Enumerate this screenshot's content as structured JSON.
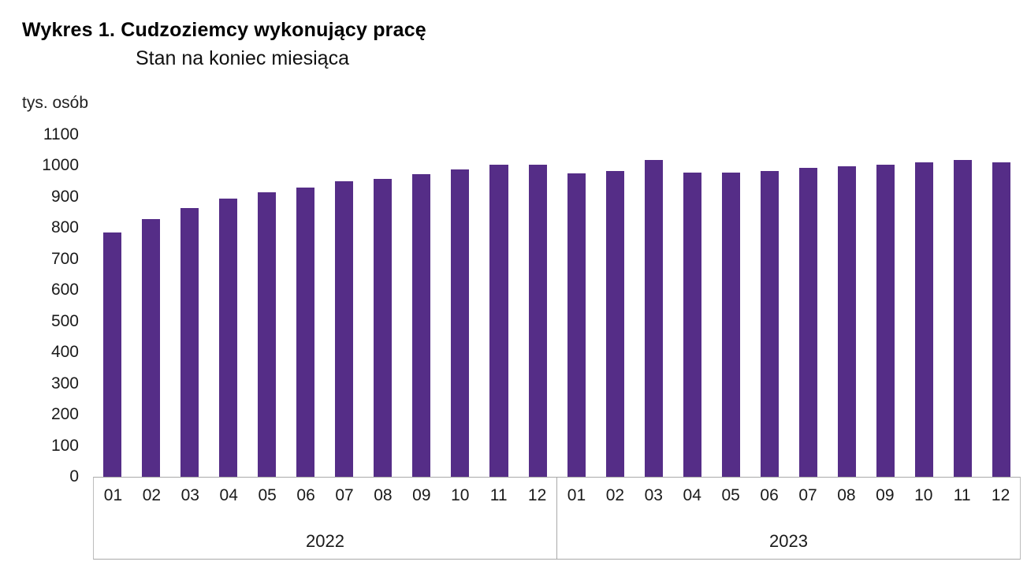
{
  "title": "Wykres 1. Cudzoziemcy wykonujący pracę",
  "subtitle": "Stan na koniec miesiąca",
  "unit_label": "tys. osób",
  "accent_color": "#552d87",
  "chart_data": {
    "type": "bar",
    "title": "Wykres 1. Cudzoziemcy wykonujący pracę",
    "subtitle": "Stan na koniec miesiąca",
    "ylabel": "tys. osób",
    "xlabel": "",
    "ylim": [
      0,
      1100
    ],
    "yticks": [
      0,
      100,
      200,
      300,
      400,
      500,
      600,
      700,
      800,
      900,
      1000,
      1100
    ],
    "grid": false,
    "legend": "none",
    "bar_color": "#552d87",
    "groups": [
      {
        "year": "2022",
        "categories": [
          "01",
          "02",
          "03",
          "04",
          "05",
          "06",
          "07",
          "08",
          "09",
          "10",
          "11",
          "12"
        ],
        "values": [
          785,
          830,
          865,
          895,
          915,
          930,
          950,
          958,
          973,
          988,
          1003,
          1003
        ]
      },
      {
        "year": "2023",
        "categories": [
          "01",
          "02",
          "03",
          "04",
          "05",
          "06",
          "07",
          "08",
          "09",
          "10",
          "11",
          "12"
        ],
        "values": [
          975,
          984,
          1018,
          978,
          979,
          984,
          994,
          999,
          1004,
          1011,
          1018,
          1012
        ]
      }
    ]
  }
}
